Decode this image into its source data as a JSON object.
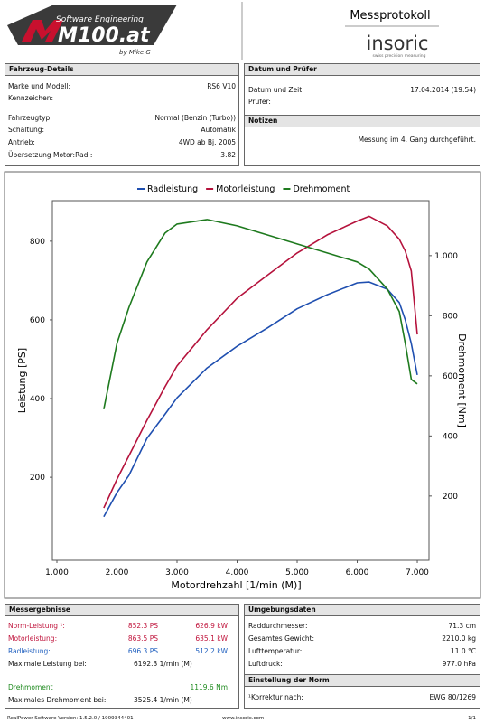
{
  "header": {
    "logo_subtitle": "Software Engineering",
    "logo": "M100.at",
    "logo_byline": "by Mike G",
    "title": "Messprotokoll",
    "brand": "insoric",
    "brand_tagline": "swiss precision measuring"
  },
  "vehicle": {
    "heading": "Fahrzeug-Details",
    "rows": [
      [
        "Marke und Modell:",
        "RS6 V10"
      ],
      [
        "Kennzeichen:"
      ],
      [
        "Fahrzeugtyp:",
        "Normal (Benzin (Turbo))"
      ],
      [
        "Schaltung:",
        "Automatik"
      ],
      [
        "Antrieb:",
        "4WD ab Bj. 2005"
      ],
      [
        "Übersetzung Motor:Rad :",
        "3.82"
      ]
    ]
  },
  "date": {
    "heading": "Datum und Prüfer",
    "rows": [
      [
        "Datum und Zeit:",
        "17.04.2014 (19:54)"
      ],
      [
        "Prüfer:"
      ]
    ]
  },
  "notes": {
    "heading": "Notizen",
    "text": "Messung im 4. Gang durchgeführt."
  },
  "chart_data": {
    "type": "line",
    "x_label": "Motordrehzahl [1/min (M)]",
    "y_label": "Leistung [PS]",
    "y2_label": "Drehmoment [Nm]",
    "legend": "top",
    "grid": false,
    "x": [
      1780,
      2000,
      2200,
      2500,
      2800,
      3000,
      3500,
      4000,
      4500,
      5000,
      5500,
      6000,
      6200,
      6500,
      6700,
      6800,
      6900,
      7000
    ],
    "series": [
      {
        "name": "Radleistung",
        "color": "#1f4fb0",
        "values": [
          100,
          161,
          205,
          299,
          360,
          402,
          478,
          533,
          579,
          628,
          664,
          694,
          696,
          678,
          644,
          600,
          540,
          460
        ]
      },
      {
        "name": "Motorleistung",
        "color": "#b5123c",
        "values": [
          122,
          195,
          255,
          345,
          430,
          483,
          575,
          655,
          713,
          770,
          816,
          851,
          863,
          839,
          805,
          775,
          724,
          563
        ]
      },
      {
        "name": "Drehmoment",
        "color": "#1e7a1e",
        "axis": "y2",
        "values": [
          489,
          708,
          828,
          979,
          1075,
          1105,
          1120,
          1099,
          1069,
          1039,
          1009,
          979,
          955,
          889,
          814,
          708,
          588,
          573
        ]
      }
    ],
    "xlim": [
      925,
      7195
    ],
    "xticks": [
      {
        "value": 1000,
        "label": "1.000"
      },
      {
        "value": 2000,
        "label": "2.000"
      },
      {
        "value": 3000,
        "label": "3.000"
      },
      {
        "value": 4000,
        "label": "4.000"
      },
      {
        "value": 5000,
        "label": "5.000"
      },
      {
        "value": 6000,
        "label": "6.000"
      },
      {
        "value": 7000,
        "label": "7.000"
      }
    ],
    "ylim": [
      -11,
      903
    ],
    "yticks": [
      200,
      400,
      600,
      800
    ],
    "y2lim": [
      -14,
      1183
    ],
    "y2ticks": [
      200,
      400,
      600,
      800,
      {
        "value": 1000,
        "label": "1.000"
      }
    ]
  },
  "results": {
    "heading": "Messergebnisse",
    "rows": [
      {
        "label": "Norm-Leistung ¹:",
        "values": [
          "852.3 PS",
          "626.9 kW"
        ],
        "color": "#c0143c"
      },
      {
        "label": "Motorleistung:",
        "values": [
          "863.5 PS",
          "635.1 kW"
        ],
        "color": "#c0143c"
      },
      {
        "label": "Radleistung:",
        "values": [
          "696.3 PS",
          "512.2 kW"
        ],
        "color": "#1f5fbf"
      },
      {
        "label": "Maximale Leistung bei:",
        "values": [
          "6192.3 1/min (M)"
        ]
      },
      {
        "label": "Drehmoment",
        "values": [
          "1119.6 Nm"
        ],
        "color": "#1e8a1e"
      },
      {
        "label": "Maximales Drehmoment bei:",
        "values": [
          "3525.4 1/min (M)"
        ]
      }
    ]
  },
  "environment": {
    "heading": "Umgebungsdaten",
    "rows": [
      [
        "Raddurchmesser:",
        "71.3 cm"
      ],
      [
        "Gesamtes Gewicht:",
        "2210.0 kg"
      ],
      [
        "Lufttemperatur:",
        "11.0 °C"
      ],
      [
        "Luftdruck:",
        "977.0 hPa"
      ]
    ]
  },
  "norm": {
    "heading": "Einstellung der Norm",
    "rows": [
      [
        "¹Korrektur nach:",
        "EWG 80/1269"
      ]
    ]
  },
  "footer": {
    "version": "RealPower Software Version: 1.5.2.0 / 1909344401",
    "url": "www.insoric.com",
    "page": "1/1"
  }
}
